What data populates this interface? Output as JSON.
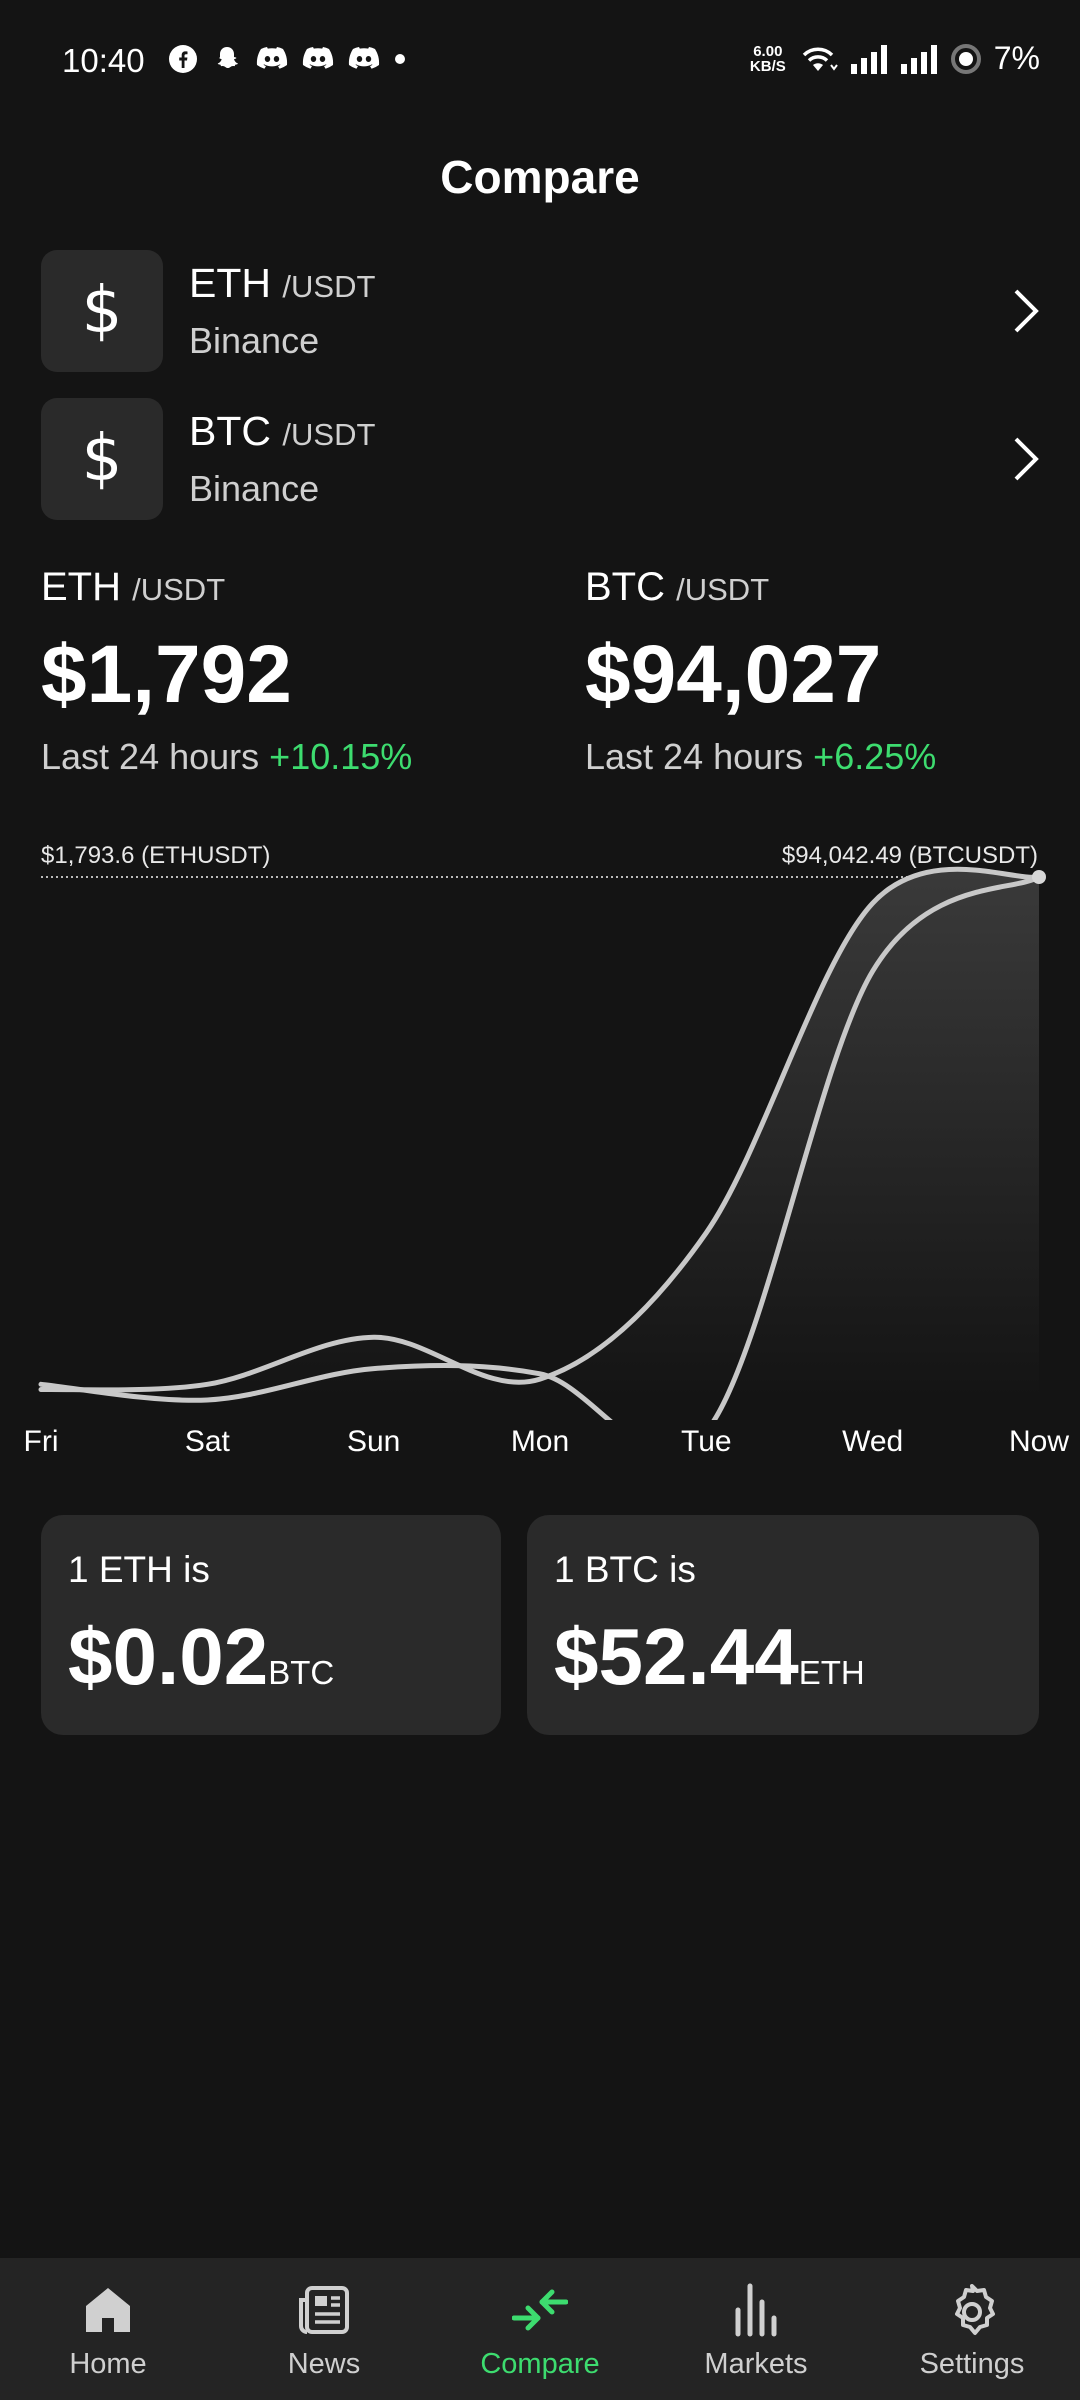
{
  "status_bar": {
    "time": "10:40",
    "net_speed_value": "6.00",
    "net_speed_unit": "KB/S",
    "battery": "7%",
    "notification_icons": [
      "facebook-icon",
      "snapchat-icon",
      "discord-icon",
      "discord-icon",
      "discord-icon",
      "dot-icon"
    ]
  },
  "header": {
    "title": "Compare"
  },
  "pairs": [
    {
      "base": "ETH",
      "quote": "/USDT",
      "exchange": "Binance"
    },
    {
      "base": "BTC",
      "quote": "/USDT",
      "exchange": "Binance"
    }
  ],
  "summary": {
    "left": {
      "base": "ETH",
      "quote": "/USDT",
      "price": "$1,792",
      "change_label": "Last 24 hours",
      "change_pct": "+10.15%"
    },
    "right": {
      "base": "BTC",
      "quote": "/USDT",
      "price": "$94,027",
      "change_label": "Last 24 hours",
      "change_pct": "+6.25%"
    }
  },
  "chart_data": {
    "type": "line",
    "normalized": true,
    "x": [
      "Fri",
      "Sat",
      "Sun",
      "Mon",
      "Tue",
      "Wed",
      "Now"
    ],
    "left_top_label": "$1,793.6 (ETHUSDT)",
    "right_top_label": "$94,042.49 (BTCUSDT)",
    "ylim": [
      0,
      1
    ],
    "series": [
      {
        "name": "ETHUSDT",
        "values": [
          0.02,
          0.03,
          0.12,
          0.04,
          0.32,
          0.95,
          1.0
        ]
      },
      {
        "name": "BTCUSDT",
        "values": [
          0.03,
          0.0,
          0.06,
          0.05,
          -0.06,
          0.82,
          1.0
        ]
      }
    ],
    "colors": {
      "line": "#c8c8c8",
      "fill_top": "#3a3a3a",
      "fill_bottom": "#141414",
      "accent": "#3ddc6f"
    }
  },
  "conversions": [
    {
      "label": "1 ETH is",
      "value": "$0.02",
      "unit": "BTC"
    },
    {
      "label": "1 BTC is",
      "value": "$52.44",
      "unit": "ETH"
    }
  ],
  "nav": {
    "items": [
      {
        "label": "Home",
        "icon": "home-icon"
      },
      {
        "label": "News",
        "icon": "news-icon"
      },
      {
        "label": "Compare",
        "icon": "compare-icon",
        "active": true
      },
      {
        "label": "Markets",
        "icon": "markets-icon"
      },
      {
        "label": "Settings",
        "icon": "settings-icon"
      }
    ]
  }
}
